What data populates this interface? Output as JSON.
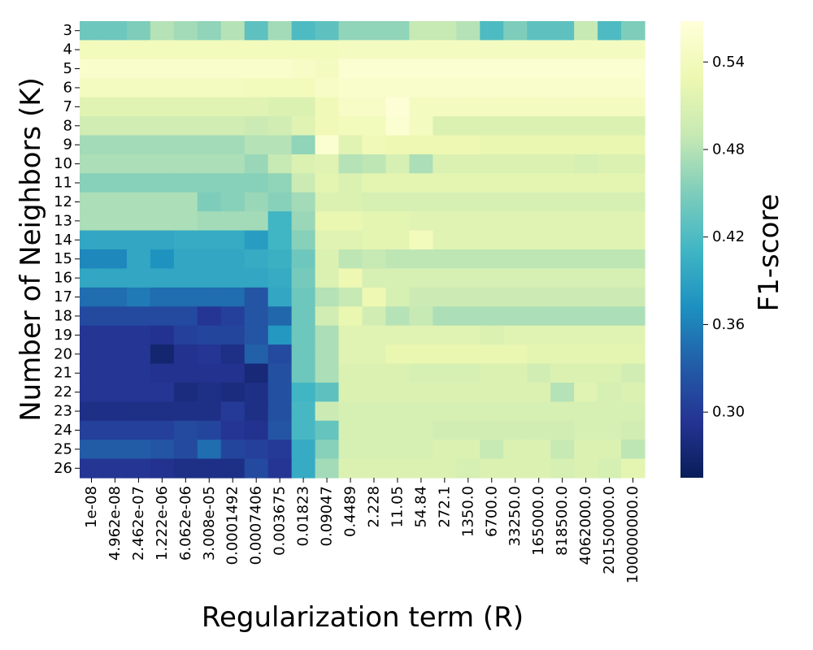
{
  "chart_data": {
    "type": "heatmap",
    "xlabel": "Regularization term (R)",
    "ylabel": "Number of Neighbors (K)",
    "colorbar_label": "F1-score",
    "colorbar_ticks": [
      "0.30",
      "0.36",
      "0.42",
      "0.48",
      "0.54"
    ],
    "colorbar_tick_values": [
      0.3,
      0.36,
      0.42,
      0.48,
      0.54
    ],
    "colorbar_range": [
      0.255,
      0.568
    ],
    "colormap": "YlGnBu",
    "x_categories": [
      "1e-08",
      "4.962e-08",
      "2.462e-07",
      "1.222e-06",
      "6.062e-06",
      "3.008e-05",
      "0.0001492",
      "0.0007406",
      "0.003675",
      "0.01823",
      "0.09047",
      "0.4489",
      "2.228",
      "11.05",
      "54.84",
      "272.1",
      "1350.0",
      "6700.0",
      "33250.0",
      "165000.0",
      "818500.0",
      "4062000.0",
      "20150000.0",
      "100000000.0"
    ],
    "y_categories": [
      "3",
      "4",
      "5",
      "6",
      "7",
      "8",
      "9",
      "10",
      "11",
      "12",
      "13",
      "14",
      "15",
      "16",
      "17",
      "18",
      "19",
      "20",
      "21",
      "22",
      "23",
      "24",
      "25",
      "26"
    ],
    "matrix": [
      [
        0.44,
        0.44,
        0.45,
        0.48,
        0.47,
        0.46,
        0.48,
        0.43,
        0.47,
        0.42,
        0.43,
        0.46,
        0.46,
        0.46,
        0.49,
        0.49,
        0.48,
        0.42,
        0.45,
        0.43,
        0.43,
        0.49,
        0.42,
        0.45
      ],
      [
        0.54,
        0.54,
        0.54,
        0.54,
        0.54,
        0.54,
        0.54,
        0.54,
        0.54,
        0.54,
        0.54,
        0.545,
        0.545,
        0.545,
        0.545,
        0.545,
        0.545,
        0.545,
        0.545,
        0.545,
        0.545,
        0.545,
        0.545,
        0.545
      ],
      [
        0.555,
        0.555,
        0.555,
        0.555,
        0.555,
        0.555,
        0.555,
        0.555,
        0.555,
        0.55,
        0.545,
        0.56,
        0.56,
        0.56,
        0.56,
        0.56,
        0.56,
        0.56,
        0.56,
        0.56,
        0.56,
        0.56,
        0.56,
        0.56
      ],
      [
        0.545,
        0.545,
        0.545,
        0.545,
        0.545,
        0.545,
        0.545,
        0.54,
        0.54,
        0.54,
        0.55,
        0.555,
        0.555,
        0.555,
        0.555,
        0.555,
        0.555,
        0.555,
        0.555,
        0.555,
        0.555,
        0.555,
        0.555,
        0.555
      ],
      [
        0.515,
        0.515,
        0.515,
        0.515,
        0.515,
        0.515,
        0.515,
        0.515,
        0.51,
        0.51,
        0.535,
        0.55,
        0.55,
        0.565,
        0.545,
        0.545,
        0.545,
        0.545,
        0.545,
        0.545,
        0.545,
        0.545,
        0.545,
        0.545
      ],
      [
        0.5,
        0.5,
        0.5,
        0.5,
        0.5,
        0.5,
        0.5,
        0.495,
        0.5,
        0.515,
        0.535,
        0.54,
        0.54,
        0.56,
        0.545,
        0.51,
        0.51,
        0.51,
        0.51,
        0.51,
        0.51,
        0.51,
        0.51,
        0.51
      ],
      [
        0.47,
        0.47,
        0.47,
        0.47,
        0.47,
        0.47,
        0.47,
        0.48,
        0.48,
        0.46,
        0.56,
        0.515,
        0.535,
        0.53,
        0.53,
        0.53,
        0.53,
        0.525,
        0.525,
        0.525,
        0.525,
        0.525,
        0.525,
        0.525
      ],
      [
        0.475,
        0.475,
        0.475,
        0.475,
        0.475,
        0.475,
        0.475,
        0.465,
        0.49,
        0.51,
        0.515,
        0.48,
        0.485,
        0.505,
        0.475,
        0.51,
        0.51,
        0.51,
        0.51,
        0.51,
        0.51,
        0.505,
        0.51,
        0.51
      ],
      [
        0.455,
        0.455,
        0.455,
        0.455,
        0.455,
        0.455,
        0.455,
        0.455,
        0.46,
        0.495,
        0.52,
        0.51,
        0.52,
        0.52,
        0.52,
        0.52,
        0.52,
        0.52,
        0.52,
        0.52,
        0.52,
        0.52,
        0.52,
        0.52
      ],
      [
        0.475,
        0.475,
        0.475,
        0.475,
        0.475,
        0.45,
        0.455,
        0.465,
        0.455,
        0.47,
        0.51,
        0.51,
        0.505,
        0.505,
        0.505,
        0.505,
        0.505,
        0.505,
        0.505,
        0.505,
        0.505,
        0.505,
        0.505,
        0.505
      ],
      [
        0.475,
        0.475,
        0.475,
        0.475,
        0.475,
        0.47,
        0.47,
        0.47,
        0.41,
        0.465,
        0.525,
        0.525,
        0.52,
        0.52,
        0.515,
        0.515,
        0.515,
        0.515,
        0.515,
        0.515,
        0.515,
        0.515,
        0.515,
        0.515
      ],
      [
        0.395,
        0.395,
        0.395,
        0.395,
        0.4,
        0.4,
        0.4,
        0.385,
        0.41,
        0.455,
        0.515,
        0.515,
        0.52,
        0.52,
        0.54,
        0.515,
        0.515,
        0.515,
        0.515,
        0.515,
        0.515,
        0.515,
        0.515,
        0.515
      ],
      [
        0.365,
        0.365,
        0.395,
        0.375,
        0.395,
        0.395,
        0.395,
        0.4,
        0.405,
        0.44,
        0.51,
        0.485,
        0.49,
        0.485,
        0.485,
        0.485,
        0.485,
        0.485,
        0.485,
        0.485,
        0.485,
        0.485,
        0.485,
        0.485
      ],
      [
        0.395,
        0.395,
        0.395,
        0.395,
        0.395,
        0.395,
        0.395,
        0.395,
        0.4,
        0.445,
        0.51,
        0.53,
        0.505,
        0.505,
        0.505,
        0.505,
        0.505,
        0.505,
        0.505,
        0.505,
        0.505,
        0.505,
        0.505,
        0.505
      ],
      [
        0.345,
        0.345,
        0.355,
        0.345,
        0.345,
        0.345,
        0.345,
        0.325,
        0.395,
        0.44,
        0.48,
        0.49,
        0.53,
        0.505,
        0.495,
        0.495,
        0.495,
        0.495,
        0.495,
        0.495,
        0.495,
        0.495,
        0.495,
        0.495
      ],
      [
        0.315,
        0.315,
        0.315,
        0.315,
        0.315,
        0.295,
        0.305,
        0.325,
        0.34,
        0.44,
        0.5,
        0.525,
        0.5,
        0.48,
        0.49,
        0.475,
        0.475,
        0.475,
        0.475,
        0.475,
        0.475,
        0.475,
        0.475,
        0.475
      ],
      [
        0.295,
        0.295,
        0.295,
        0.29,
        0.305,
        0.31,
        0.31,
        0.325,
        0.38,
        0.44,
        0.475,
        0.515,
        0.515,
        0.515,
        0.515,
        0.515,
        0.515,
        0.51,
        0.515,
        0.515,
        0.515,
        0.515,
        0.515,
        0.515
      ],
      [
        0.295,
        0.295,
        0.295,
        0.27,
        0.29,
        0.295,
        0.285,
        0.335,
        0.315,
        0.44,
        0.475,
        0.515,
        0.515,
        0.525,
        0.525,
        0.525,
        0.525,
        0.525,
        0.525,
        0.52,
        0.52,
        0.52,
        0.52,
        0.52
      ],
      [
        0.295,
        0.295,
        0.295,
        0.29,
        0.29,
        0.29,
        0.29,
        0.275,
        0.32,
        0.44,
        0.475,
        0.51,
        0.51,
        0.51,
        0.505,
        0.505,
        0.505,
        0.51,
        0.51,
        0.5,
        0.51,
        0.51,
        0.51,
        0.5
      ],
      [
        0.295,
        0.295,
        0.295,
        0.295,
        0.28,
        0.285,
        0.28,
        0.285,
        0.32,
        0.41,
        0.43,
        0.51,
        0.51,
        0.51,
        0.51,
        0.51,
        0.51,
        0.51,
        0.51,
        0.51,
        0.48,
        0.515,
        0.505,
        0.51
      ],
      [
        0.285,
        0.285,
        0.285,
        0.285,
        0.285,
        0.285,
        0.3,
        0.285,
        0.32,
        0.415,
        0.495,
        0.505,
        0.505,
        0.505,
        0.505,
        0.505,
        0.505,
        0.505,
        0.505,
        0.505,
        0.505,
        0.505,
        0.505,
        0.505
      ],
      [
        0.305,
        0.305,
        0.305,
        0.305,
        0.315,
        0.31,
        0.295,
        0.29,
        0.325,
        0.415,
        0.435,
        0.505,
        0.505,
        0.505,
        0.505,
        0.5,
        0.5,
        0.5,
        0.5,
        0.5,
        0.5,
        0.505,
        0.505,
        0.5
      ],
      [
        0.33,
        0.33,
        0.33,
        0.325,
        0.315,
        0.345,
        0.31,
        0.305,
        0.3,
        0.4,
        0.455,
        0.505,
        0.505,
        0.505,
        0.505,
        0.51,
        0.51,
        0.49,
        0.51,
        0.51,
        0.49,
        0.51,
        0.51,
        0.485
      ],
      [
        0.295,
        0.295,
        0.295,
        0.29,
        0.285,
        0.285,
        0.285,
        0.315,
        0.295,
        0.4,
        0.47,
        0.51,
        0.51,
        0.51,
        0.51,
        0.51,
        0.505,
        0.51,
        0.51,
        0.51,
        0.505,
        0.51,
        0.505,
        0.52
      ]
    ]
  },
  "stops": [
    "#081d58",
    "#253494",
    "#225ea8",
    "#1d91c0",
    "#41b6c4",
    "#7fcdbb",
    "#c7e9b4",
    "#edf8b1",
    "#ffffd9"
  ]
}
